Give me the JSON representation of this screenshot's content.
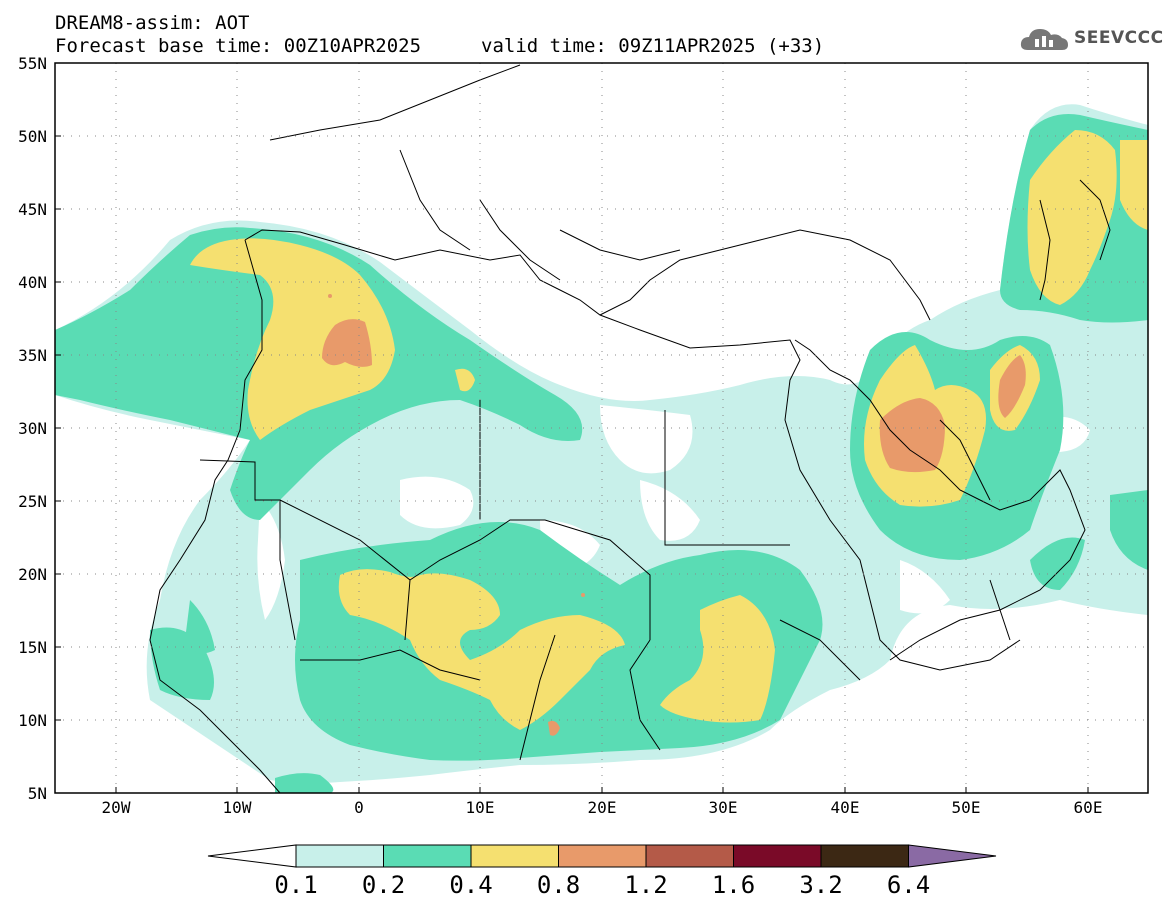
{
  "header": {
    "model_title": "DREAM8-assim: AOT",
    "base_time": "Forecast base time: 00Z10APR2025",
    "valid_time": "valid time: 09Z11APR2025 (+33)",
    "logo_text": "SEEVCCC"
  },
  "axes": {
    "lat_labels": [
      "55N",
      "50N",
      "45N",
      "40N",
      "35N",
      "30N",
      "25N",
      "20N",
      "15N",
      "10N",
      "5N"
    ],
    "lon_labels": [
      "20W",
      "10W",
      "0",
      "10E",
      "20E",
      "30E",
      "40E",
      "50E",
      "60E"
    ],
    "lat_range": [
      5,
      55
    ],
    "lon_range": [
      -25,
      65
    ]
  },
  "colorbar": {
    "labels": [
      "0.1",
      "0.2",
      "0.4",
      "0.8",
      "1.2",
      "1.6",
      "3.2",
      "6.4"
    ],
    "colors": [
      "#ffffff",
      "#c8f0ea",
      "#5adcb4",
      "#f5e070",
      "#e89a6a",
      "#b45a48",
      "#7a0a28",
      "#3c2814",
      "#8a6aa4"
    ]
  },
  "colors": {
    "aot_0_1": "#c8f0ea",
    "aot_0_2": "#5adcb4",
    "aot_0_4": "#f5e070",
    "aot_0_8": "#e89a6a"
  }
}
